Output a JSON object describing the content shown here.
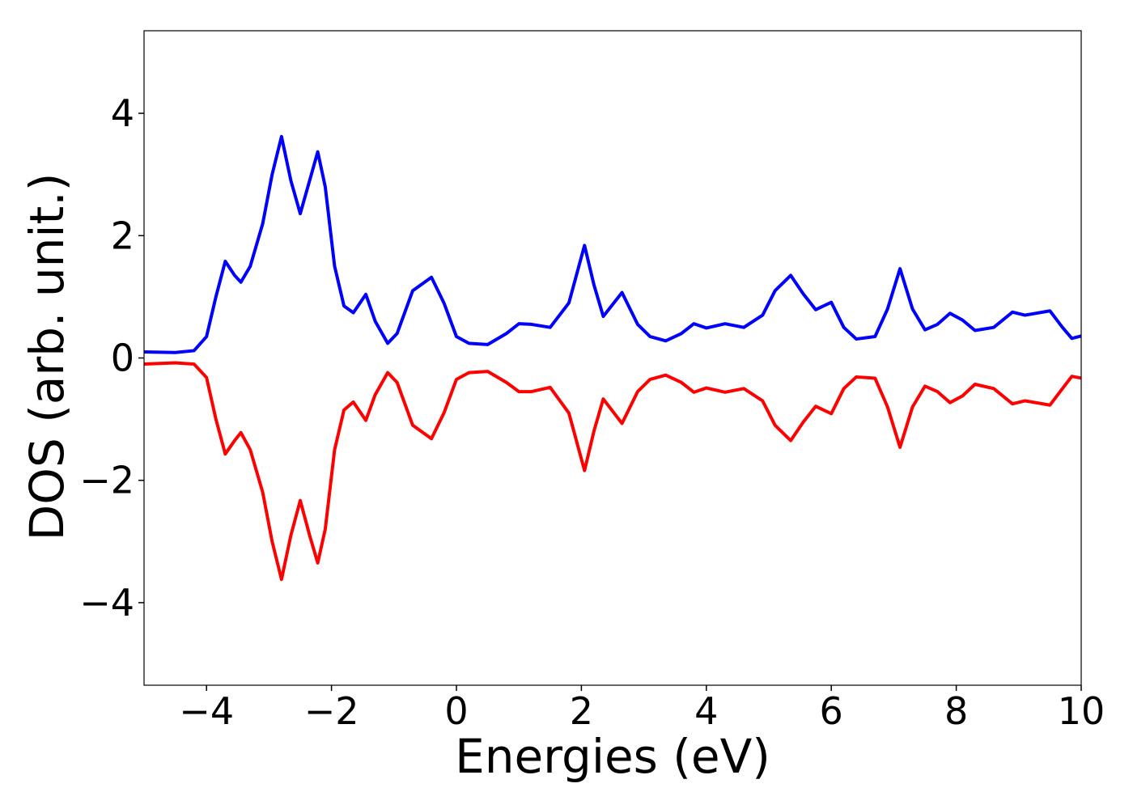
{
  "chart_data": {
    "type": "line",
    "xlabel": "Energies (eV)",
    "ylabel": "DOS (arb. unit.)",
    "x": [
      -5,
      -4.5,
      -4.2,
      -4.0,
      -3.85,
      -3.7,
      -3.55,
      -3.45,
      -3.3,
      -3.1,
      -2.95,
      -2.8,
      -2.65,
      -2.5,
      -2.35,
      -2.22,
      -2.1,
      -1.95,
      -1.8,
      -1.65,
      -1.45,
      -1.3,
      -1.1,
      -0.95,
      -0.7,
      -0.4,
      -0.2,
      0,
      0.2,
      0.5,
      0.8,
      1.0,
      1.2,
      1.5,
      1.8,
      2.05,
      2.2,
      2.35,
      2.65,
      2.9,
      3.1,
      3.35,
      3.6,
      3.8,
      4.0,
      4.3,
      4.6,
      4.9,
      5.1,
      5.35,
      5.55,
      5.75,
      6.0,
      6.2,
      6.4,
      6.7,
      6.9,
      7.1,
      7.3,
      7.5,
      7.7,
      7.9,
      8.1,
      8.3,
      8.6,
      8.9,
      9.1,
      9.5,
      9.7,
      9.85,
      10
    ],
    "series": [
      {
        "color": "#0000ff",
        "values": [
          0.1,
          0.09,
          0.12,
          0.35,
          1.0,
          1.58,
          1.35,
          1.24,
          1.5,
          2.2,
          3.0,
          3.62,
          2.9,
          2.36,
          2.9,
          3.37,
          2.8,
          1.5,
          0.85,
          0.74,
          1.04,
          0.6,
          0.24,
          0.4,
          1.1,
          1.32,
          0.9,
          0.35,
          0.24,
          0.22,
          0.4,
          0.56,
          0.55,
          0.5,
          0.9,
          1.84,
          1.2,
          0.68,
          1.07,
          0.55,
          0.35,
          0.28,
          0.4,
          0.56,
          0.49,
          0.56,
          0.5,
          0.7,
          1.1,
          1.35,
          1.05,
          0.79,
          0.91,
          0.5,
          0.31,
          0.35,
          0.8,
          1.46,
          0.8,
          0.46,
          0.55,
          0.73,
          0.62,
          0.45,
          0.5,
          0.75,
          0.7,
          0.77,
          0.5,
          0.32,
          0.36
        ]
      },
      {
        "color": "#ff0000",
        "values": [
          -0.1,
          -0.08,
          -0.1,
          -0.32,
          -1.0,
          -1.57,
          -1.35,
          -1.22,
          -1.5,
          -2.2,
          -3.0,
          -3.62,
          -2.9,
          -2.33,
          -2.9,
          -3.35,
          -2.8,
          -1.5,
          -0.85,
          -0.72,
          -1.02,
          -0.6,
          -0.24,
          -0.4,
          -1.1,
          -1.32,
          -0.9,
          -0.35,
          -0.24,
          -0.22,
          -0.4,
          -0.55,
          -0.55,
          -0.48,
          -0.9,
          -1.84,
          -1.2,
          -0.67,
          -1.07,
          -0.55,
          -0.35,
          -0.28,
          -0.4,
          -0.56,
          -0.49,
          -0.56,
          -0.5,
          -0.7,
          -1.1,
          -1.35,
          -1.05,
          -0.79,
          -0.91,
          -0.5,
          -0.31,
          -0.33,
          -0.8,
          -1.46,
          -0.8,
          -0.46,
          -0.55,
          -0.73,
          -0.62,
          -0.43,
          -0.5,
          -0.75,
          -0.7,
          -0.77,
          -0.5,
          -0.3,
          -0.33
        ]
      }
    ],
    "xlim": [
      -5,
      10
    ],
    "ylim": [
      -5.35,
      5.35
    ],
    "xticks": [
      {
        "value": -4,
        "label": "−4"
      },
      {
        "value": -2,
        "label": "−2"
      },
      0,
      2,
      4,
      6,
      8,
      10
    ],
    "yticks": [
      {
        "value": -4,
        "label": "−4"
      },
      {
        "value": -2,
        "label": "−2"
      },
      0,
      2,
      4
    ]
  }
}
